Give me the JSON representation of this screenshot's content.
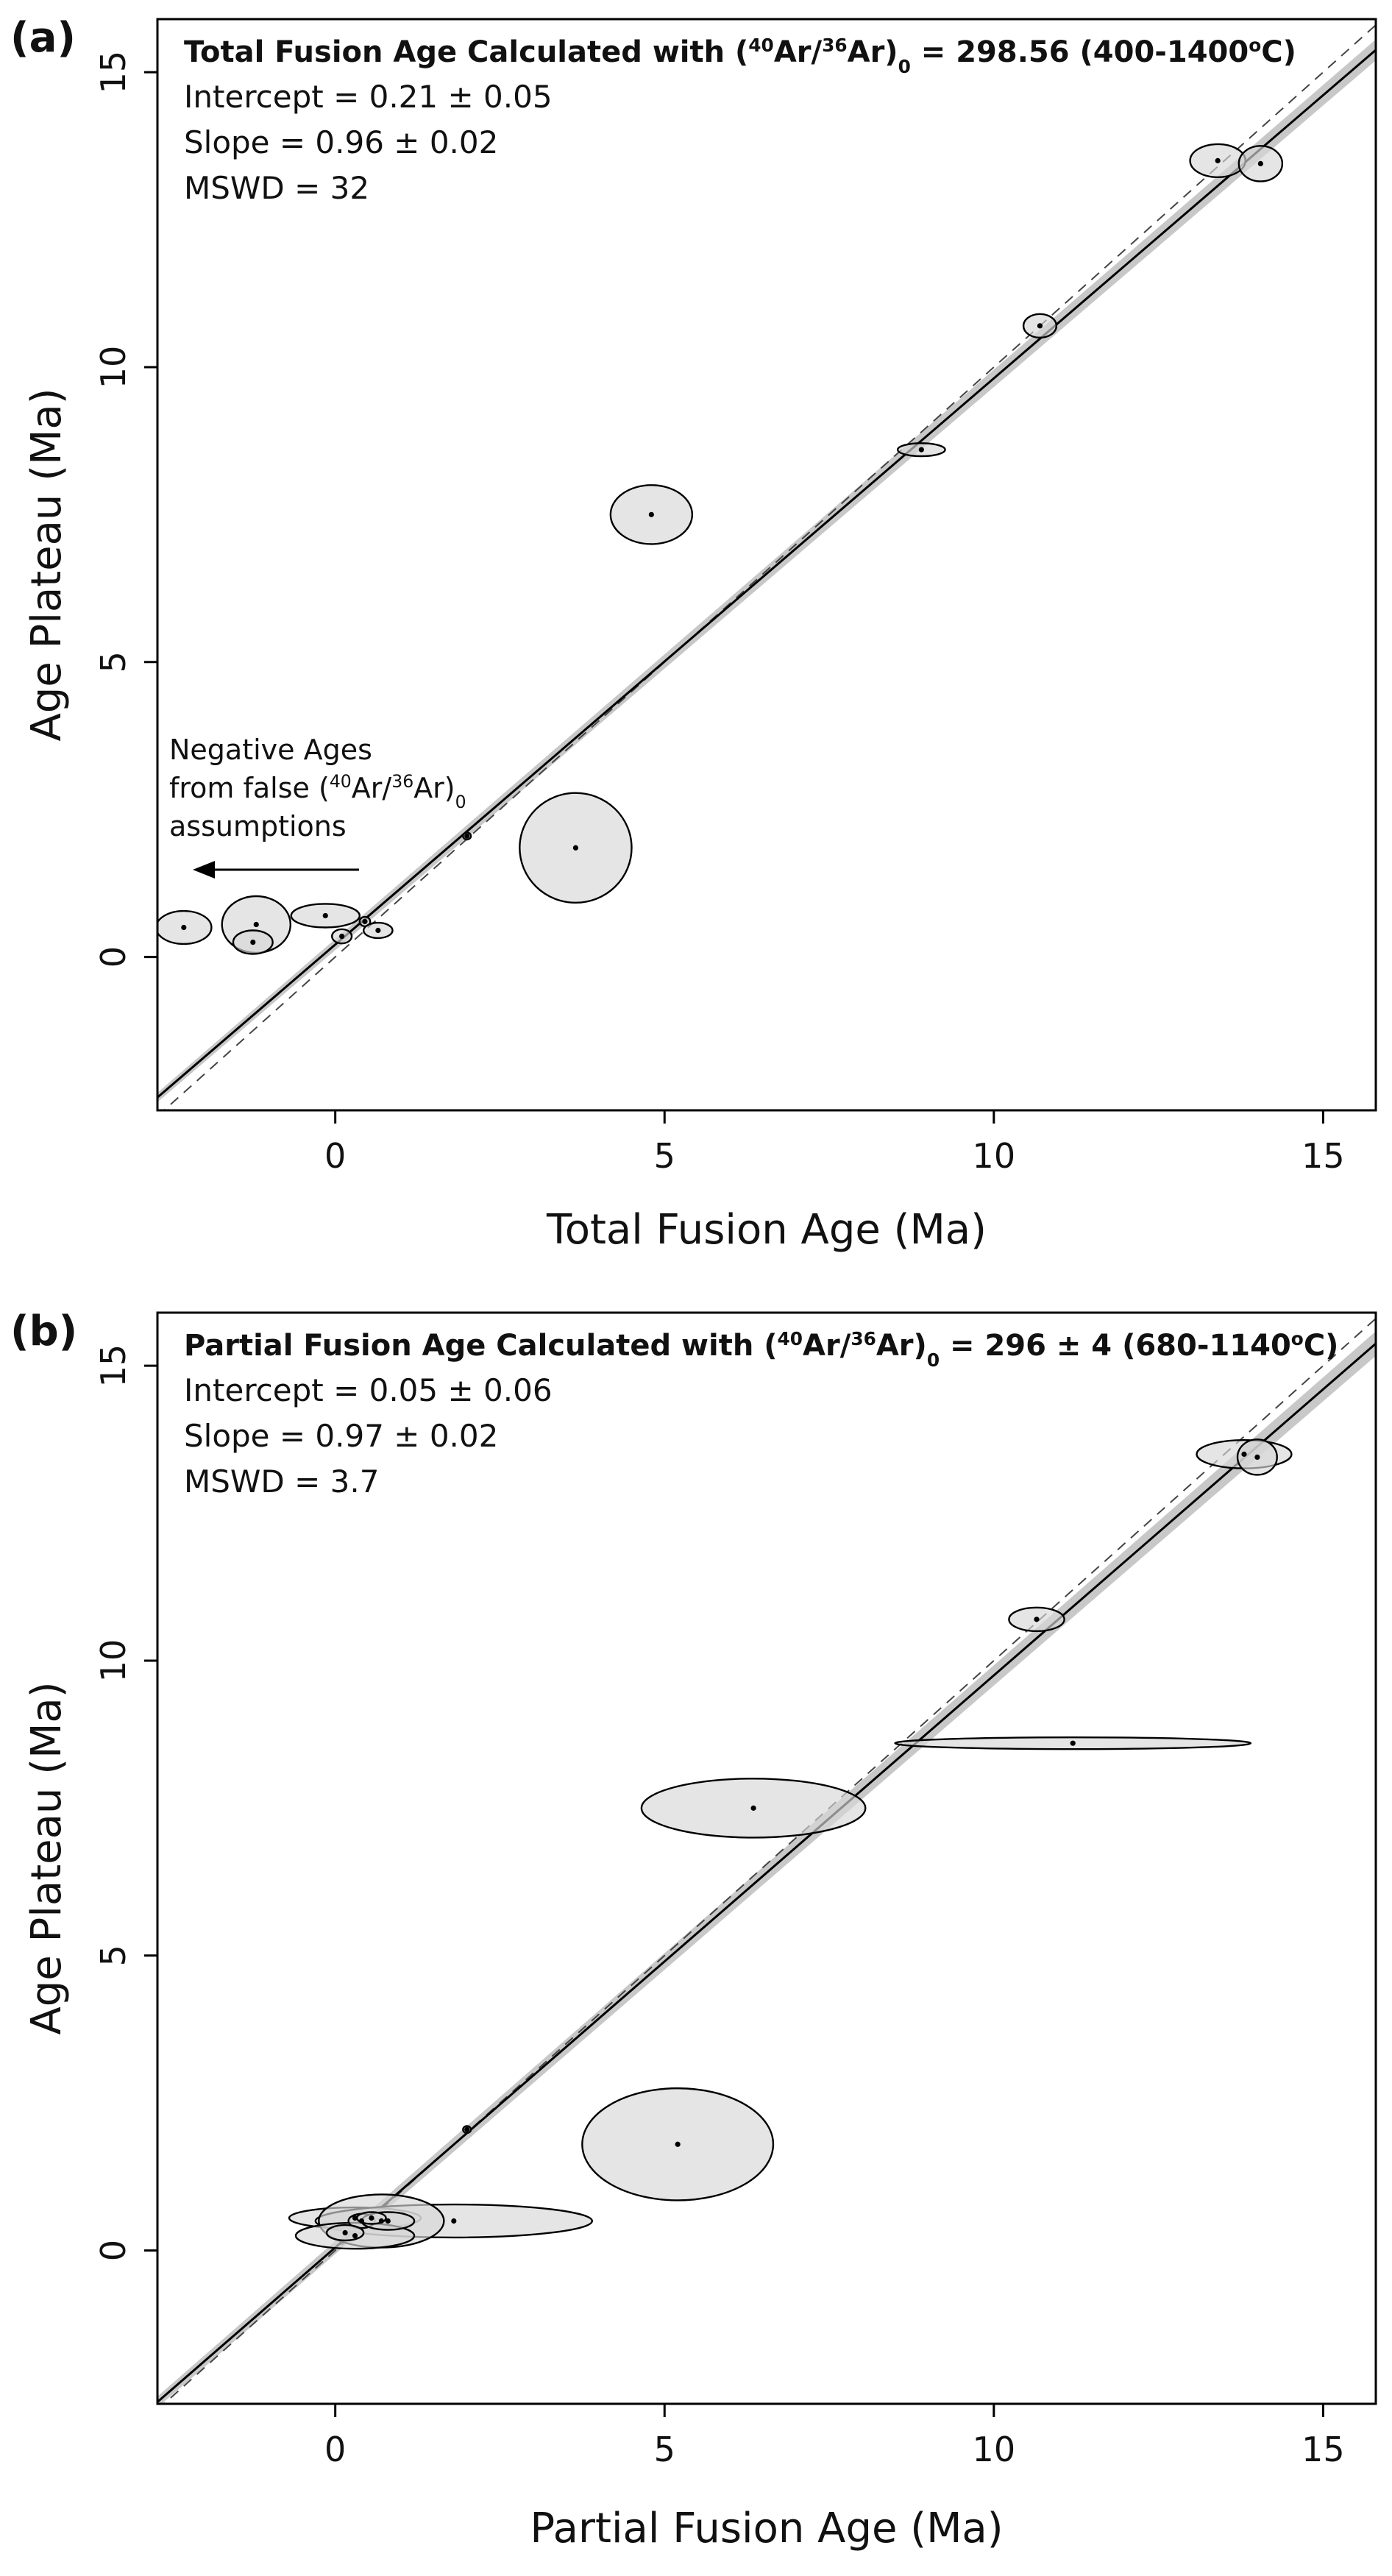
{
  "chart_data": [
    {
      "type": "scatter",
      "panel_label": "(a)",
      "xlabel": "Total Fusion Age (Ma)",
      "ylabel": "Age Plateau (Ma)",
      "xlim": [
        -2.7,
        15.8
      ],
      "ylim": [
        -2.6,
        15.9
      ],
      "xticks": [
        0,
        5,
        10,
        15
      ],
      "yticks": [
        0,
        5,
        10,
        15
      ],
      "title_parts": [
        "Total Fusion Age Calculated with (",
        "40",
        "Ar/",
        "36",
        "Ar)",
        "0",
        " = 298.56 (400-1400",
        "o",
        "C)"
      ],
      "stats": [
        "Intercept = 0.21 ± 0.05",
        "Slope = 0.96 ± 0.02",
        "MSWD = 32"
      ],
      "fit": {
        "intercept": 0.21,
        "slope": 0.96,
        "band": 0.06
      },
      "reference_line": "1:1 dashed",
      "note_lines": [
        [
          "Negative Ages"
        ],
        [
          "from false (",
          "40",
          "Ar/",
          "36",
          "Ar)",
          "0"
        ],
        [
          "assumptions"
        ]
      ],
      "points": [
        {
          "x": -2.3,
          "y": 0.5,
          "rx": 0.42,
          "ry": 0.28
        },
        {
          "x": -1.2,
          "y": 0.55,
          "rx": 0.52,
          "ry": 0.48
        },
        {
          "x": -1.25,
          "y": 0.25,
          "rx": 0.3,
          "ry": 0.2
        },
        {
          "x": -0.15,
          "y": 0.7,
          "rx": 0.52,
          "ry": 0.2
        },
        {
          "x": 0.1,
          "y": 0.35,
          "rx": 0.15,
          "ry": 0.12
        },
        {
          "x": 0.45,
          "y": 0.6,
          "rx": 0.08,
          "ry": 0.08
        },
        {
          "x": 0.65,
          "y": 0.45,
          "rx": 0.22,
          "ry": 0.13
        },
        {
          "x": 2.0,
          "y": 2.05,
          "rx": 0.06,
          "ry": 0.06
        },
        {
          "x": 3.65,
          "y": 1.85,
          "rx": 0.85,
          "ry": 0.93
        },
        {
          "x": 4.8,
          "y": 7.5,
          "rx": 0.62,
          "ry": 0.5
        },
        {
          "x": 8.9,
          "y": 8.6,
          "rx": 0.36,
          "ry": 0.11
        },
        {
          "x": 10.7,
          "y": 10.7,
          "rx": 0.25,
          "ry": 0.2
        },
        {
          "x": 13.4,
          "y": 13.5,
          "rx": 0.42,
          "ry": 0.28
        },
        {
          "x": 14.05,
          "y": 13.45,
          "rx": 0.33,
          "ry": 0.3
        }
      ]
    },
    {
      "type": "scatter",
      "panel_label": "(b)",
      "xlabel": "Partial Fusion Age (Ma)",
      "ylabel": "Age Plateau (Ma)",
      "xlim": [
        -2.7,
        15.8
      ],
      "ylim": [
        -2.6,
        15.9
      ],
      "xticks": [
        0,
        5,
        10,
        15
      ],
      "yticks": [
        0,
        5,
        10,
        15
      ],
      "title_parts": [
        "Partial Fusion Age Calculated with (",
        "40",
        "Ar/",
        "36",
        "Ar)",
        "0",
        " = 296 ± 4 (680-1140",
        "o",
        "C)"
      ],
      "stats": [
        "Intercept = 0.05 ± 0.06",
        "Slope = 0.97 ± 0.02",
        "MSWD = 3.7"
      ],
      "fit": {
        "intercept": 0.05,
        "slope": 0.97,
        "band": 0.07
      },
      "reference_line": "1:1 dashed",
      "points": [
        {
          "x": 0.3,
          "y": 0.55,
          "rx": 1.0,
          "ry": 0.18
        },
        {
          "x": 1.8,
          "y": 0.5,
          "rx": 2.1,
          "ry": 0.28
        },
        {
          "x": 0.7,
          "y": 0.5,
          "rx": 0.95,
          "ry": 0.45
        },
        {
          "x": 0.3,
          "y": 0.25,
          "rx": 0.9,
          "ry": 0.22
        },
        {
          "x": 0.4,
          "y": 0.5,
          "rx": 0.2,
          "ry": 0.12
        },
        {
          "x": 0.8,
          "y": 0.5,
          "rx": 0.4,
          "ry": 0.15
        },
        {
          "x": 0.15,
          "y": 0.3,
          "rx": 0.28,
          "ry": 0.13
        },
        {
          "x": 0.55,
          "y": 0.55,
          "rx": 0.22,
          "ry": 0.1
        },
        {
          "x": 2.0,
          "y": 2.05,
          "rx": 0.06,
          "ry": 0.06
        },
        {
          "x": 5.2,
          "y": 1.8,
          "rx": 1.45,
          "ry": 0.95
        },
        {
          "x": 6.35,
          "y": 7.5,
          "rx": 1.7,
          "ry": 0.5
        },
        {
          "x": 11.2,
          "y": 8.6,
          "rx": 2.7,
          "ry": 0.1
        },
        {
          "x": 10.65,
          "y": 10.7,
          "rx": 0.42,
          "ry": 0.2
        },
        {
          "x": 13.8,
          "y": 13.5,
          "rx": 0.72,
          "ry": 0.24
        },
        {
          "x": 14.0,
          "y": 13.45,
          "rx": 0.3,
          "ry": 0.3
        }
      ]
    }
  ]
}
